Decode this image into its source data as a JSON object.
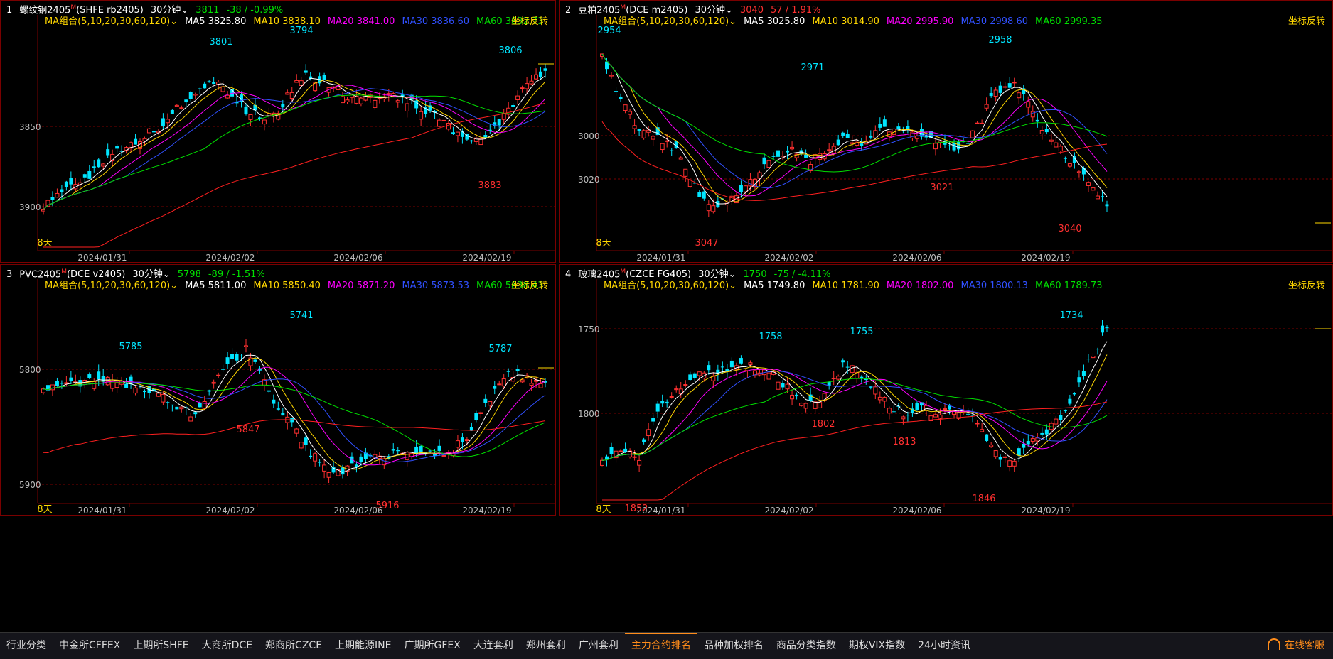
{
  "panels": [
    {
      "index": "1",
      "name": "螺纹钢2405",
      "superscript": "M",
      "code": "(SHFE rb2405)",
      "period": "30分钟",
      "price": "3811",
      "change": "-38 / -0.99%",
      "change_color": "#00e000",
      "ma_label": "MA组合(5,10,20,30,60,120)",
      "ma_values": [
        {
          "label": "MA5 3825.80",
          "color": "#ffffff"
        },
        {
          "label": "MA10 3838.10",
          "color": "#ffd700"
        },
        {
          "label": "MA20 3841.00",
          "color": "#ff00ff"
        },
        {
          "label": "MA30 3836.60",
          "color": "#3050ff"
        },
        {
          "label": "MA60 3832.73",
          "color": "#00e000"
        }
      ],
      "flip_label": "坐标反转",
      "days_label": "8天",
      "y_ticks": [
        "3850",
        "3900"
      ],
      "x_ticks": [
        "2024/01/31",
        "2024/02/02",
        "2024/02/06",
        "2024/02/19"
      ],
      "annotations": [
        {
          "text": "3801",
          "color": "#00e5ff"
        },
        {
          "text": "3794",
          "color": "#00e5ff"
        },
        {
          "text": "3806",
          "color": "#00e5ff"
        },
        {
          "text": "3883",
          "color": "#ff3030"
        }
      ]
    },
    {
      "index": "2",
      "name": "豆粕2405",
      "superscript": "M",
      "code": "(DCE m2405)",
      "period": "30分钟",
      "price": "3040",
      "change": "57 / 1.91%",
      "change_color": "#ff3030",
      "ma_label": "MA组合(5,10,20,30,60,120)",
      "ma_values": [
        {
          "label": "MA5 3025.80",
          "color": "#ffffff"
        },
        {
          "label": "MA10 3014.90",
          "color": "#ffd700"
        },
        {
          "label": "MA20 2995.90",
          "color": "#ff00ff"
        },
        {
          "label": "MA30 2998.60",
          "color": "#3050ff"
        },
        {
          "label": "MA60 2999.35",
          "color": "#00e000"
        }
      ],
      "flip_label": "坐标反转",
      "days_label": "8天",
      "y_ticks": [
        "3000",
        "3020"
      ],
      "x_ticks": [
        "2024/01/31",
        "2024/02/02",
        "2024/02/06",
        "2024/02/19"
      ],
      "annotations": [
        {
          "text": "2954",
          "color": "#00e5ff"
        },
        {
          "text": "2971",
          "color": "#00e5ff"
        },
        {
          "text": "2958",
          "color": "#00e5ff"
        },
        {
          "text": "3047",
          "color": "#ff3030"
        },
        {
          "text": "3021",
          "color": "#ff3030"
        },
        {
          "text": "3040",
          "color": "#ff3030"
        }
      ]
    },
    {
      "index": "3",
      "name": "PVC2405",
      "superscript": "M",
      "code": "(DCE v2405)",
      "period": "30分钟",
      "price": "5798",
      "change": "-89 / -1.51%",
      "change_color": "#00e000",
      "ma_label": "MA组合(5,10,20,30,60,120)",
      "ma_values": [
        {
          "label": "MA5 5811.00",
          "color": "#ffffff"
        },
        {
          "label": "MA10 5850.40",
          "color": "#ffd700"
        },
        {
          "label": "MA20 5871.20",
          "color": "#ff00ff"
        },
        {
          "label": "MA30 5873.53",
          "color": "#3050ff"
        },
        {
          "label": "MA60 5838.43",
          "color": "#00e000"
        }
      ],
      "flip_label": "坐标反转",
      "days_label": "8天",
      "y_ticks": [
        "5800",
        "5900"
      ],
      "x_ticks": [
        "2024/01/31",
        "2024/02/02",
        "2024/02/06",
        "2024/02/19"
      ],
      "annotations": [
        {
          "text": "5785",
          "color": "#00e5ff"
        },
        {
          "text": "5741",
          "color": "#00e5ff"
        },
        {
          "text": "5787",
          "color": "#00e5ff"
        },
        {
          "text": "5847",
          "color": "#ff3030"
        },
        {
          "text": "5916",
          "color": "#ff3030"
        }
      ]
    },
    {
      "index": "4",
      "name": "玻璃2405",
      "superscript": "M",
      "code": "(CZCE FG405)",
      "period": "30分钟",
      "price": "1750",
      "change": "-75 / -4.11%",
      "change_color": "#00e000",
      "ma_label": "MA组合(5,10,20,30,60,120)",
      "ma_values": [
        {
          "label": "MA5 1749.80",
          "color": "#ffffff"
        },
        {
          "label": "MA10 1781.90",
          "color": "#ffd700"
        },
        {
          "label": "MA20 1802.00",
          "color": "#ff00ff"
        },
        {
          "label": "MA30 1800.13",
          "color": "#3050ff"
        },
        {
          "label": "MA60 1789.73",
          "color": "#00e000"
        }
      ],
      "flip_label": "坐标反转",
      "days_label": "8天",
      "y_ticks": [
        "1750",
        "1800"
      ],
      "x_ticks": [
        "2024/01/31",
        "2024/02/02",
        "2024/02/06",
        "2024/02/19"
      ],
      "annotations": [
        {
          "text": "1758",
          "color": "#00e5ff"
        },
        {
          "text": "1755",
          "color": "#00e5ff"
        },
        {
          "text": "1734",
          "color": "#00e5ff"
        },
        {
          "text": "1852",
          "color": "#ff3030"
        },
        {
          "text": "1802",
          "color": "#ff3030"
        },
        {
          "text": "1813",
          "color": "#ff3030"
        },
        {
          "text": "1846",
          "color": "#ff3030"
        }
      ]
    }
  ],
  "bottom_tabs": [
    "行业分类",
    "中金所CFFEX",
    "上期所SHFE",
    "大商所DCE",
    "郑商所CZCE",
    "上期能源INE",
    "广期所GFEX",
    "大连套利",
    "郑州套利",
    "广州套利",
    "主力合约排名",
    "品种加权排名",
    "商品分类指数",
    "期权VIX指数",
    "24小时资讯"
  ],
  "active_tab": "主力合约排名",
  "service_label": "在线客服",
  "colors": {
    "up": "#ff3030",
    "down": "#00e5ff",
    "border": "#7a0000",
    "axis_text": "#bbbbbb",
    "grid": "#7a0000"
  }
}
